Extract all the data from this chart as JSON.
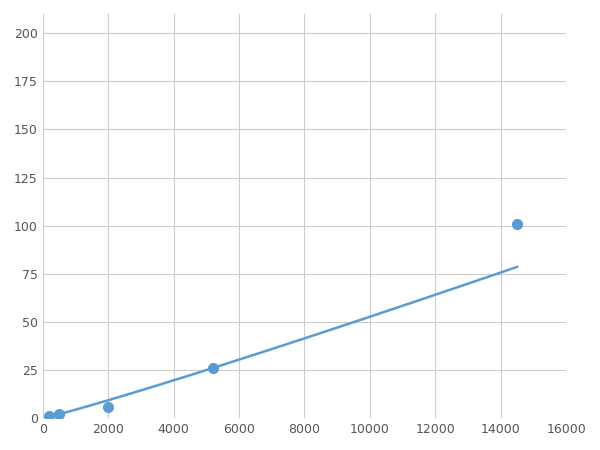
{
  "x_points": [
    200,
    500,
    2000,
    5200,
    14500
  ],
  "y_points": [
    1,
    2,
    6,
    26,
    101
  ],
  "line_color": "#5b9bd5",
  "marker_color": "#5b9bd5",
  "marker_size": 7,
  "line_width": 1.8,
  "xlim": [
    0,
    16000
  ],
  "ylim": [
    0,
    210
  ],
  "xticks": [
    0,
    2000,
    4000,
    6000,
    8000,
    10000,
    12000,
    14000,
    16000
  ],
  "yticks": [
    0,
    25,
    50,
    75,
    100,
    125,
    150,
    175,
    200
  ],
  "grid_color": "#cccccc",
  "background_color": "#ffffff"
}
